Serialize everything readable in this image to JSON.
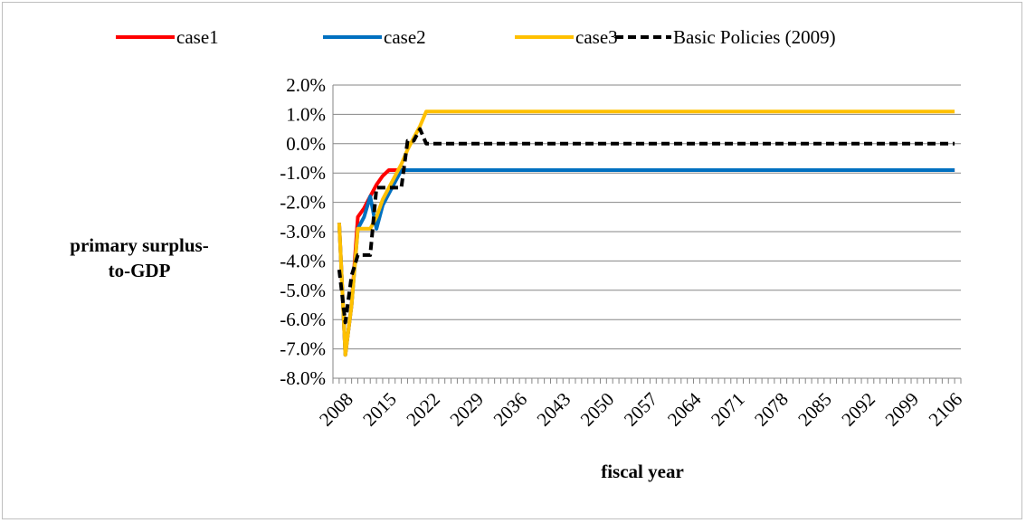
{
  "chart_data": {
    "type": "line",
    "title": "",
    "xlabel": "fiscal year",
    "ylabel": "primary surplus-to-GDP",
    "ylim": [
      -0.08,
      0.02
    ],
    "yticks": [
      0.02,
      0.01,
      0.0,
      -0.01,
      -0.02,
      -0.03,
      -0.04,
      -0.05,
      -0.06,
      -0.07,
      -0.08
    ],
    "ytick_labels": [
      "2.0%",
      "1.0%",
      "0.0%",
      "-1.0%",
      "-2.0%",
      "-3.0%",
      "-4.0%",
      "-5.0%",
      "-6.0%",
      "-7.0%",
      "-8.0%"
    ],
    "xlim": [
      2007,
      2108
    ],
    "xtick_labels": [
      "2008",
      "2015",
      "2022",
      "2029",
      "2036",
      "2043",
      "2050",
      "2057",
      "2064",
      "2071",
      "2078",
      "2085",
      "2092",
      "2099",
      "2106"
    ],
    "xticks": [
      2008,
      2015,
      2022,
      2029,
      2036,
      2043,
      2050,
      2057,
      2064,
      2071,
      2078,
      2085,
      2092,
      2099,
      2106
    ],
    "grid": "horizontal",
    "legend_position": "top",
    "series": [
      {
        "name": "case1",
        "color": "#ff0000",
        "dash": "solid",
        "points": [
          [
            2008,
            -0.027
          ],
          [
            2009,
            -0.072
          ],
          [
            2010,
            -0.055
          ],
          [
            2011,
            -0.025
          ],
          [
            2012,
            -0.022
          ],
          [
            2013,
            -0.018
          ],
          [
            2014,
            -0.014
          ],
          [
            2015,
            -0.011
          ],
          [
            2016,
            -0.009
          ],
          [
            2017,
            -0.009
          ],
          [
            2018,
            -0.009
          ],
          [
            2019,
            -0.009
          ],
          [
            2107,
            -0.009
          ]
        ]
      },
      {
        "name": "case2",
        "color": "#0070c0",
        "dash": "solid",
        "points": [
          [
            2008,
            -0.027
          ],
          [
            2009,
            -0.072
          ],
          [
            2010,
            -0.055
          ],
          [
            2011,
            -0.029
          ],
          [
            2012,
            -0.025
          ],
          [
            2013,
            -0.018
          ],
          [
            2014,
            -0.029
          ],
          [
            2015,
            -0.021
          ],
          [
            2016,
            -0.017
          ],
          [
            2017,
            -0.013
          ],
          [
            2018,
            -0.009
          ],
          [
            2107,
            -0.009
          ]
        ]
      },
      {
        "name": "case3",
        "color": "#ffc000",
        "dash": "solid",
        "points": [
          [
            2008,
            -0.027
          ],
          [
            2009,
            -0.072
          ],
          [
            2010,
            -0.055
          ],
          [
            2011,
            -0.029
          ],
          [
            2012,
            -0.029
          ],
          [
            2013,
            -0.029
          ],
          [
            2014,
            -0.025
          ],
          [
            2015,
            -0.019
          ],
          [
            2016,
            -0.015
          ],
          [
            2017,
            -0.011
          ],
          [
            2018,
            -0.007
          ],
          [
            2019,
            -0.002
          ],
          [
            2020,
            0.002
          ],
          [
            2021,
            0.006
          ],
          [
            2022,
            0.011
          ],
          [
            2107,
            0.011
          ]
        ]
      },
      {
        "name": "Basic Policies (2009)",
        "color": "#000000",
        "dash": "dashed",
        "points": [
          [
            2008,
            -0.043
          ],
          [
            2009,
            -0.061
          ],
          [
            2010,
            -0.045
          ],
          [
            2011,
            -0.038
          ],
          [
            2012,
            -0.038
          ],
          [
            2013,
            -0.038
          ],
          [
            2014,
            -0.015
          ],
          [
            2015,
            -0.015
          ],
          [
            2016,
            -0.015
          ],
          [
            2017,
            -0.015
          ],
          [
            2018,
            -0.015
          ],
          [
            2019,
            0.001
          ],
          [
            2020,
            0.001
          ],
          [
            2021,
            0.005
          ],
          [
            2022,
            0.0
          ],
          [
            2107,
            0.0
          ]
        ]
      }
    ]
  }
}
